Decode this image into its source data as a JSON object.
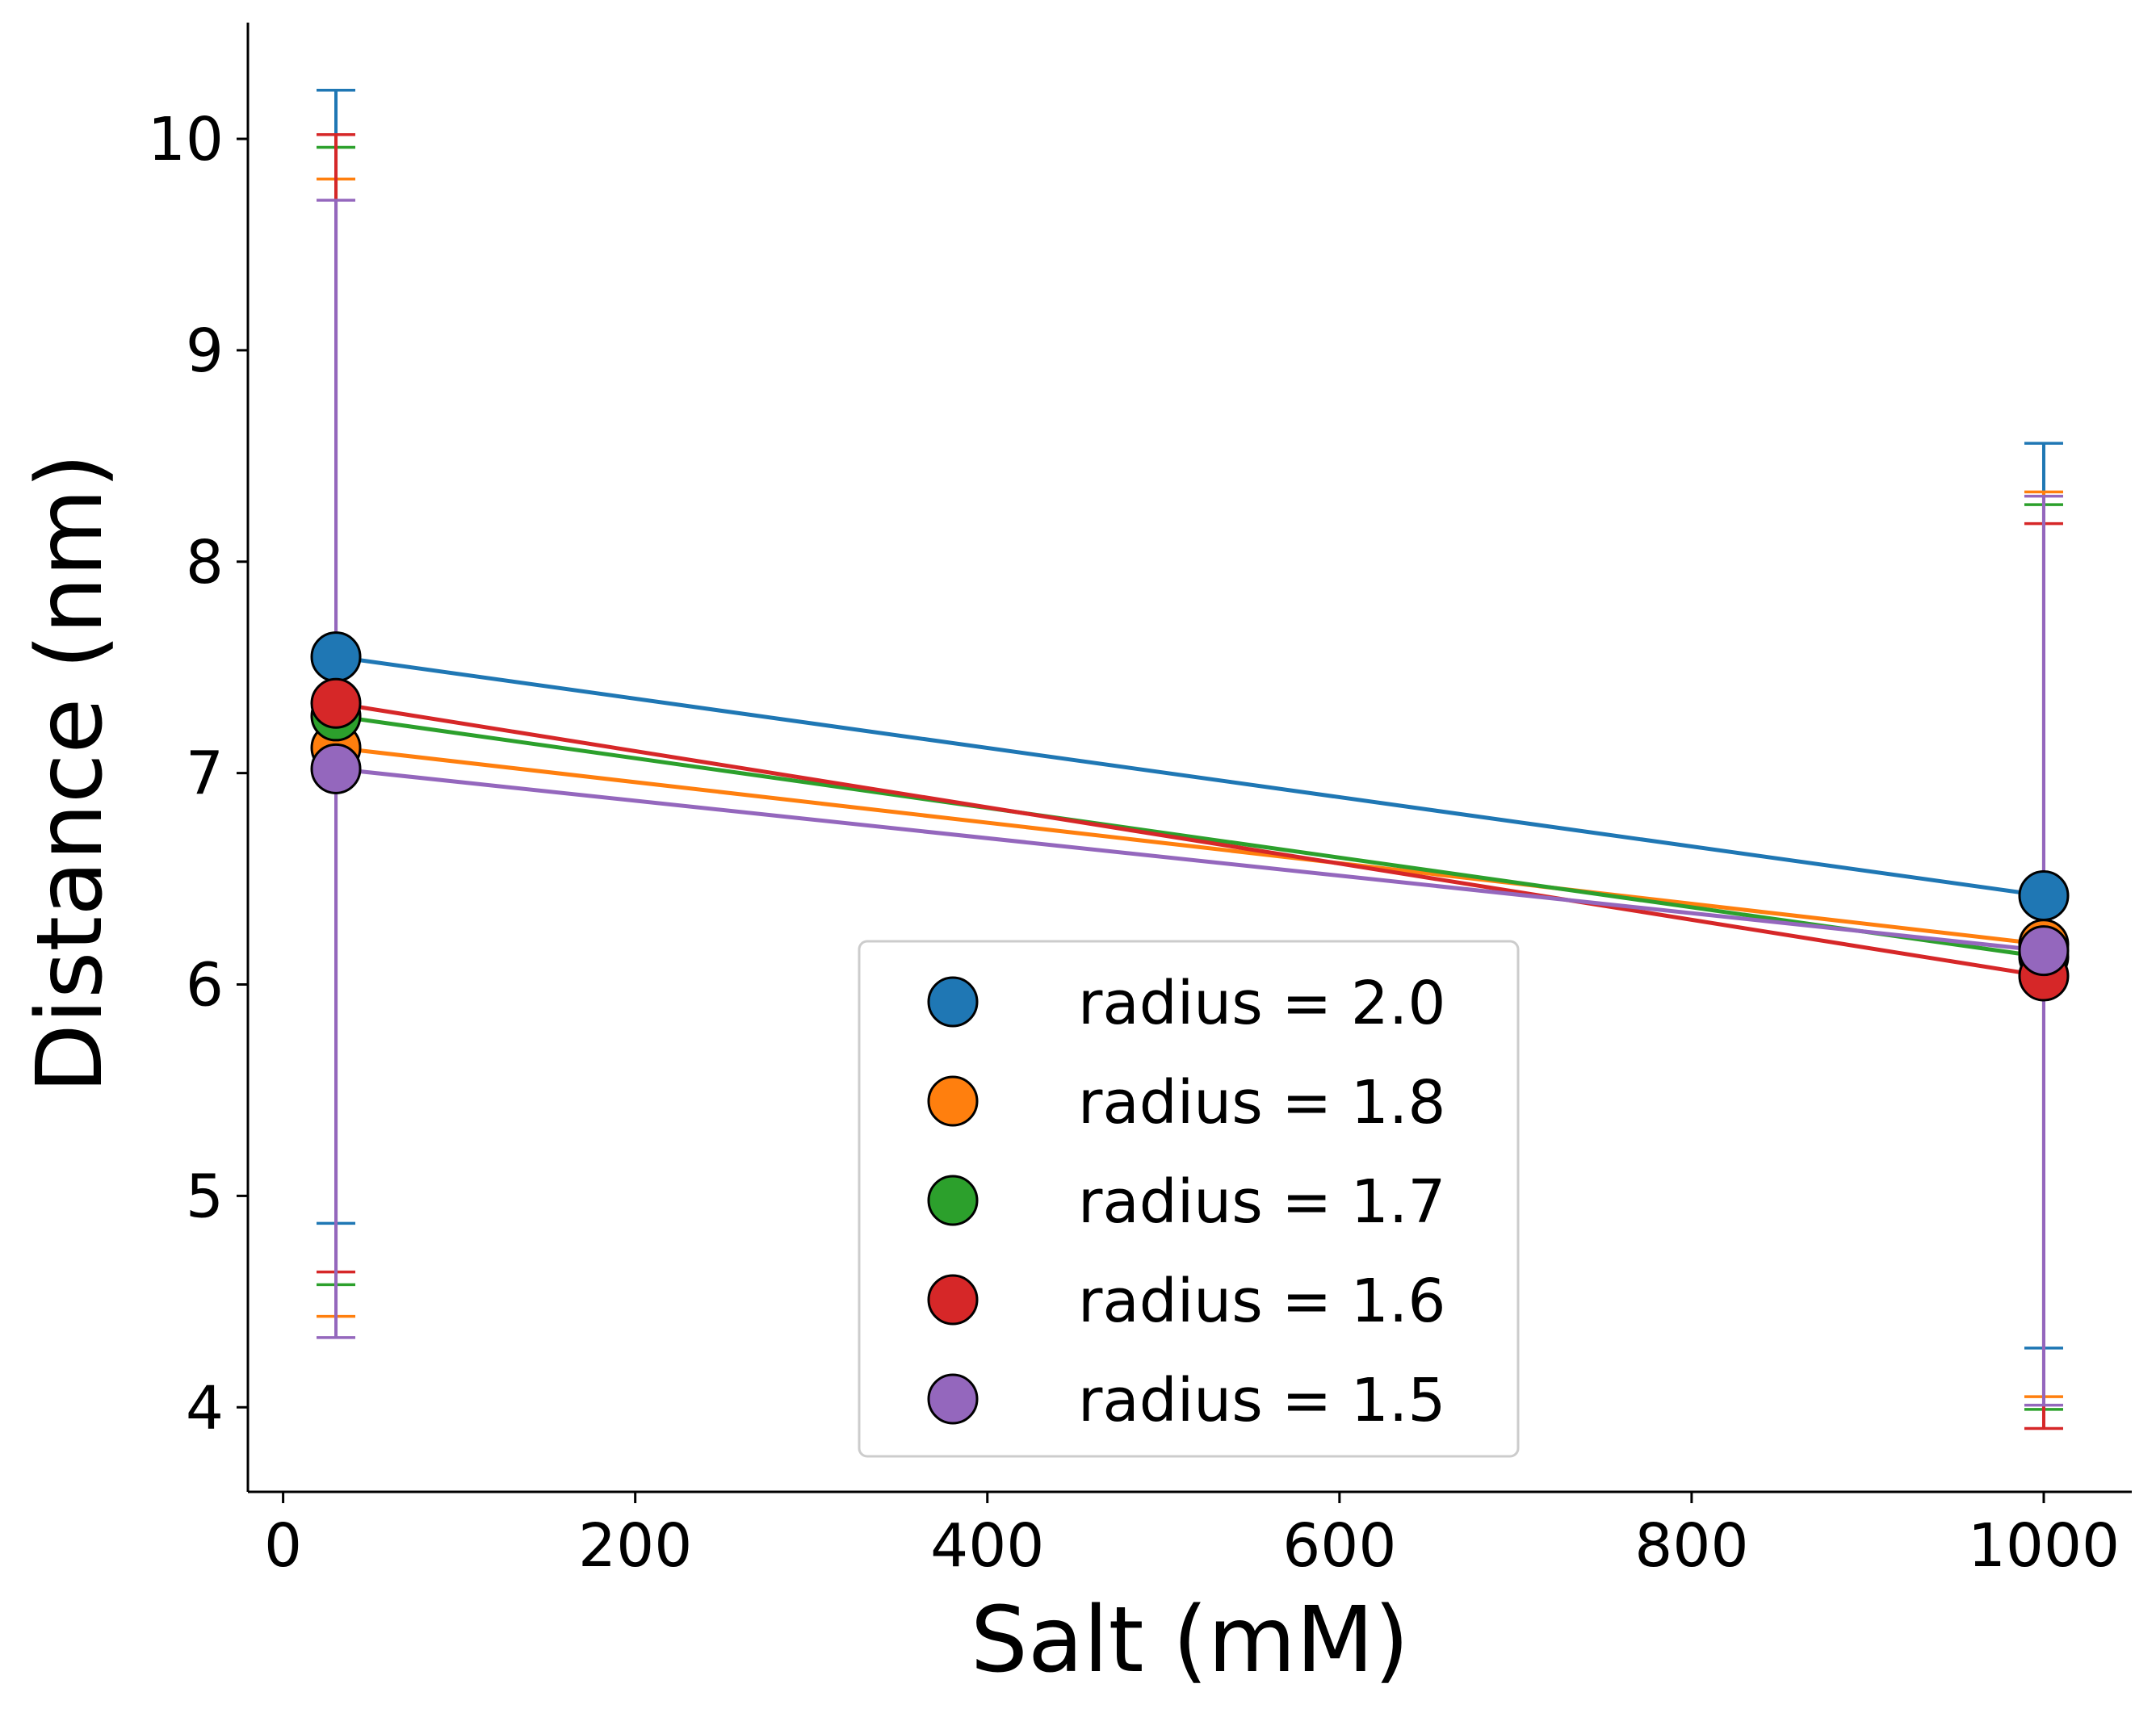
{
  "chart_data": {
    "type": "line",
    "title": "",
    "xlabel": "Salt (mM)",
    "ylabel": "Distance (nm)",
    "xlim": [
      -20,
      1050
    ],
    "ylim": [
      3.6,
      10.55
    ],
    "xticks": [
      0,
      200,
      400,
      600,
      800,
      1000
    ],
    "yticks": [
      4,
      5,
      6,
      7,
      8,
      9,
      10
    ],
    "grid": false,
    "legend_position": "lower-center",
    "x": [
      30,
      1000
    ],
    "series": [
      {
        "name": "radius = 2.0",
        "color": "#1f77b4",
        "values": [
          7.55,
          6.42
        ],
        "error": [
          2.68,
          2.14
        ]
      },
      {
        "name": "radius = 1.8",
        "color": "#ff7f0e",
        "values": [
          7.12,
          6.19
        ],
        "error": [
          2.69,
          2.14
        ]
      },
      {
        "name": "radius = 1.7",
        "color": "#2ca02c",
        "values": [
          7.27,
          6.13
        ],
        "error": [
          2.69,
          2.14
        ]
      },
      {
        "name": "radius = 1.6",
        "color": "#d62728",
        "values": [
          7.33,
          6.04
        ],
        "error": [
          2.69,
          2.14
        ]
      },
      {
        "name": "radius = 1.5",
        "color": "#9467bd",
        "values": [
          7.02,
          6.16
        ],
        "error": [
          2.69,
          2.15
        ]
      }
    ]
  }
}
